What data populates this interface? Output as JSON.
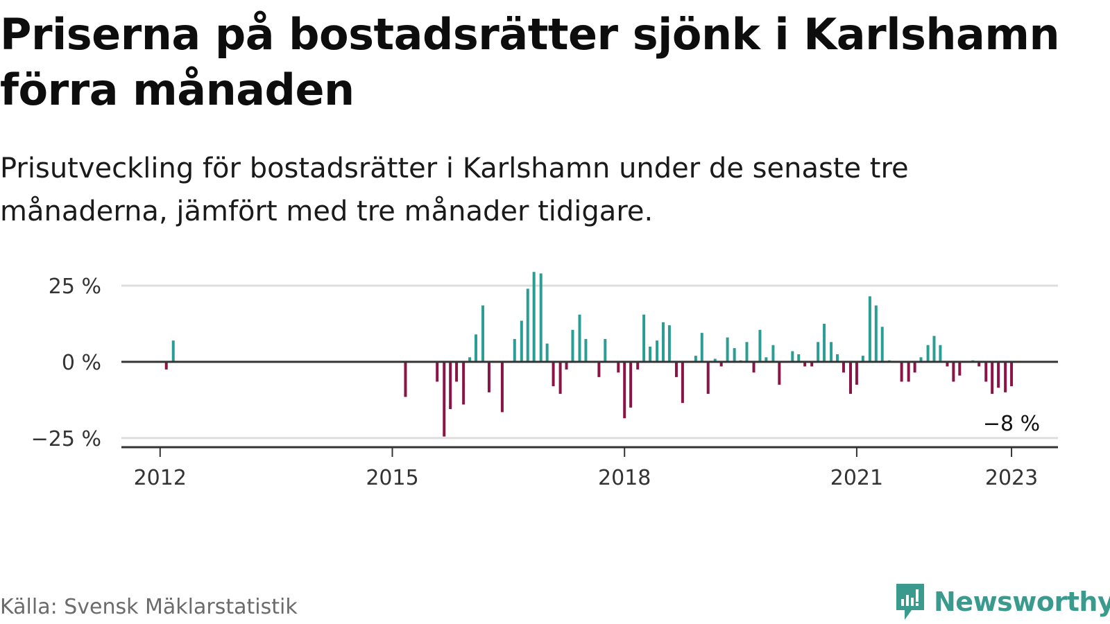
{
  "title": "Priserna på bostadsrätter sjönk i Karlshamn förra månaden",
  "subtitle": "Prisutveckling för bostadsrätter i Karlshamn under de senaste tre månaderna, jämfört med tre månader tidigare.",
  "source": "Källa: Svensk Mäklarstatistik",
  "brand": "Newsworthy",
  "colors": {
    "positive": "#2a9d94",
    "negative": "#8a1446",
    "brand": "#3a9a8e"
  },
  "chart_data": {
    "type": "bar",
    "ylim": [
      -28,
      30
    ],
    "xlim": [
      2011.5,
      2023.6
    ],
    "y_ticks": [
      {
        "value": 25,
        "label": "25 %"
      },
      {
        "value": 0,
        "label": "0 %"
      },
      {
        "value": -25,
        "label": "−25 %"
      }
    ],
    "x_ticks": [
      {
        "value": 2012,
        "label": "2012"
      },
      {
        "value": 2015,
        "label": "2015"
      },
      {
        "value": 2018,
        "label": "2018"
      },
      {
        "value": 2021,
        "label": "2021"
      },
      {
        "value": 2023,
        "label": "2023"
      }
    ],
    "grid": true,
    "annotation": {
      "x": 2023.0,
      "value": -8,
      "label": "−8 %"
    },
    "points": [
      {
        "x": 2012.08,
        "y": -2.5
      },
      {
        "x": 2012.17,
        "y": 7
      },
      {
        "x": 2015.17,
        "y": -11.5
      },
      {
        "x": 2015.58,
        "y": -6.5
      },
      {
        "x": 2015.67,
        "y": -24.5
      },
      {
        "x": 2015.75,
        "y": -15.5
      },
      {
        "x": 2015.83,
        "y": -6.5
      },
      {
        "x": 2015.92,
        "y": -14
      },
      {
        "x": 2016.0,
        "y": 1.5
      },
      {
        "x": 2016.08,
        "y": 9
      },
      {
        "x": 2016.17,
        "y": 18.5
      },
      {
        "x": 2016.25,
        "y": -10
      },
      {
        "x": 2016.42,
        "y": -16.5
      },
      {
        "x": 2016.58,
        "y": 7.5
      },
      {
        "x": 2016.67,
        "y": 13.5
      },
      {
        "x": 2016.75,
        "y": 24
      },
      {
        "x": 2016.83,
        "y": 29.5
      },
      {
        "x": 2016.92,
        "y": 29
      },
      {
        "x": 2017.0,
        "y": 6
      },
      {
        "x": 2017.08,
        "y": -8
      },
      {
        "x": 2017.17,
        "y": -10.5
      },
      {
        "x": 2017.25,
        "y": -2.5
      },
      {
        "x": 2017.33,
        "y": 10.5
      },
      {
        "x": 2017.42,
        "y": 15.5
      },
      {
        "x": 2017.5,
        "y": 7.5
      },
      {
        "x": 2017.67,
        "y": -5
      },
      {
        "x": 2017.75,
        "y": 7.5
      },
      {
        "x": 2017.92,
        "y": -3.5
      },
      {
        "x": 2018.0,
        "y": -18.5
      },
      {
        "x": 2018.08,
        "y": -15
      },
      {
        "x": 2018.17,
        "y": -2.5
      },
      {
        "x": 2018.25,
        "y": 15.5
      },
      {
        "x": 2018.33,
        "y": 5
      },
      {
        "x": 2018.42,
        "y": 7
      },
      {
        "x": 2018.5,
        "y": 13
      },
      {
        "x": 2018.58,
        "y": 12
      },
      {
        "x": 2018.67,
        "y": -5
      },
      {
        "x": 2018.75,
        "y": -13.5
      },
      {
        "x": 2018.92,
        "y": 2
      },
      {
        "x": 2019.0,
        "y": 9.5
      },
      {
        "x": 2019.08,
        "y": -10.5
      },
      {
        "x": 2019.17,
        "y": 1
      },
      {
        "x": 2019.25,
        "y": -1.5
      },
      {
        "x": 2019.33,
        "y": 8
      },
      {
        "x": 2019.42,
        "y": 4.5
      },
      {
        "x": 2019.5,
        "y": 0.5
      },
      {
        "x": 2019.58,
        "y": 6.5
      },
      {
        "x": 2019.67,
        "y": -3.5
      },
      {
        "x": 2019.75,
        "y": 10.5
      },
      {
        "x": 2019.83,
        "y": 1.5
      },
      {
        "x": 2019.92,
        "y": 5.5
      },
      {
        "x": 2020.0,
        "y": -7.5
      },
      {
        "x": 2020.17,
        "y": 3.5
      },
      {
        "x": 2020.25,
        "y": 2.5
      },
      {
        "x": 2020.33,
        "y": -1.5
      },
      {
        "x": 2020.42,
        "y": -1.5
      },
      {
        "x": 2020.5,
        "y": 6.5
      },
      {
        "x": 2020.58,
        "y": 12.5
      },
      {
        "x": 2020.67,
        "y": 6.5
      },
      {
        "x": 2020.75,
        "y": 2.5
      },
      {
        "x": 2020.83,
        "y": -3.5
      },
      {
        "x": 2020.92,
        "y": -10.5
      },
      {
        "x": 2021.0,
        "y": -7.5
      },
      {
        "x": 2021.08,
        "y": 2
      },
      {
        "x": 2021.17,
        "y": 21.5
      },
      {
        "x": 2021.25,
        "y": 18.5
      },
      {
        "x": 2021.33,
        "y": 11.5
      },
      {
        "x": 2021.42,
        "y": 0.5
      },
      {
        "x": 2021.58,
        "y": -6.5
      },
      {
        "x": 2021.67,
        "y": -6.5
      },
      {
        "x": 2021.75,
        "y": -3.5
      },
      {
        "x": 2021.83,
        "y": 1.5
      },
      {
        "x": 2021.92,
        "y": 5.5
      },
      {
        "x": 2022.0,
        "y": 8.5
      },
      {
        "x": 2022.08,
        "y": 5.5
      },
      {
        "x": 2022.17,
        "y": -1.5
      },
      {
        "x": 2022.25,
        "y": -6.5
      },
      {
        "x": 2022.33,
        "y": -4.5
      },
      {
        "x": 2022.5,
        "y": 0.5
      },
      {
        "x": 2022.58,
        "y": -1.5
      },
      {
        "x": 2022.67,
        "y": -6.5
      },
      {
        "x": 2022.75,
        "y": -10.5
      },
      {
        "x": 2022.83,
        "y": -8.5
      },
      {
        "x": 2022.92,
        "y": -10
      },
      {
        "x": 2023.0,
        "y": -8
      }
    ]
  }
}
